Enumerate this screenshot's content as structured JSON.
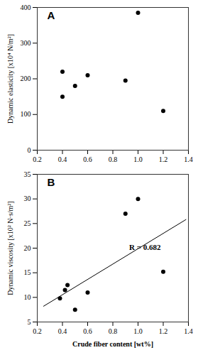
{
  "chart_data": [
    {
      "type": "scatter",
      "title": "A",
      "x": [
        0.4,
        0.4,
        0.5,
        0.6,
        0.9,
        1.0,
        1.2
      ],
      "y": [
        220,
        150,
        180,
        210,
        195,
        385,
        110
      ],
      "color": "#000000",
      "ylabel": "Dynamic elasticity [x10⁴ N/m²]",
      "xlim": [
        0.2,
        1.4
      ],
      "ylim": [
        0,
        400
      ],
      "xticks": [
        0.2,
        0.4,
        0.6,
        0.8,
        {
          "value": 1.0,
          "label": "1.0"
        },
        1.2,
        1.4
      ],
      "yticks": [
        0,
        100,
        200,
        300,
        400
      ]
    },
    {
      "type": "scatter",
      "title": "B",
      "x": [
        0.38,
        0.42,
        0.44,
        0.5,
        0.6,
        0.9,
        1.0,
        1.2
      ],
      "y": [
        9.8,
        11.5,
        12.5,
        7.5,
        11.0,
        27.0,
        30.0,
        15.2
      ],
      "color": "#000000",
      "regression": {
        "x": [
          0.25,
          1.38
        ],
        "y": [
          8.2,
          25.8
        ],
        "color": "#000000"
      },
      "annotations": [
        {
          "text": "R = 0.682",
          "x": 0.93,
          "y": 20.2
        }
      ],
      "xlabel": "Crude fiber content [wt%]",
      "ylabel": "Dynamic viscosity [x10² N·s/m²]",
      "xlim": [
        0.2,
        1.4
      ],
      "ylim": [
        5,
        35
      ],
      "xticks": [
        0.2,
        0.4,
        0.6,
        0.8,
        {
          "value": 1.0,
          "label": "1.0"
        },
        1.2,
        1.4
      ],
      "yticks": [
        5,
        10,
        15,
        20,
        25,
        30,
        35
      ]
    }
  ]
}
